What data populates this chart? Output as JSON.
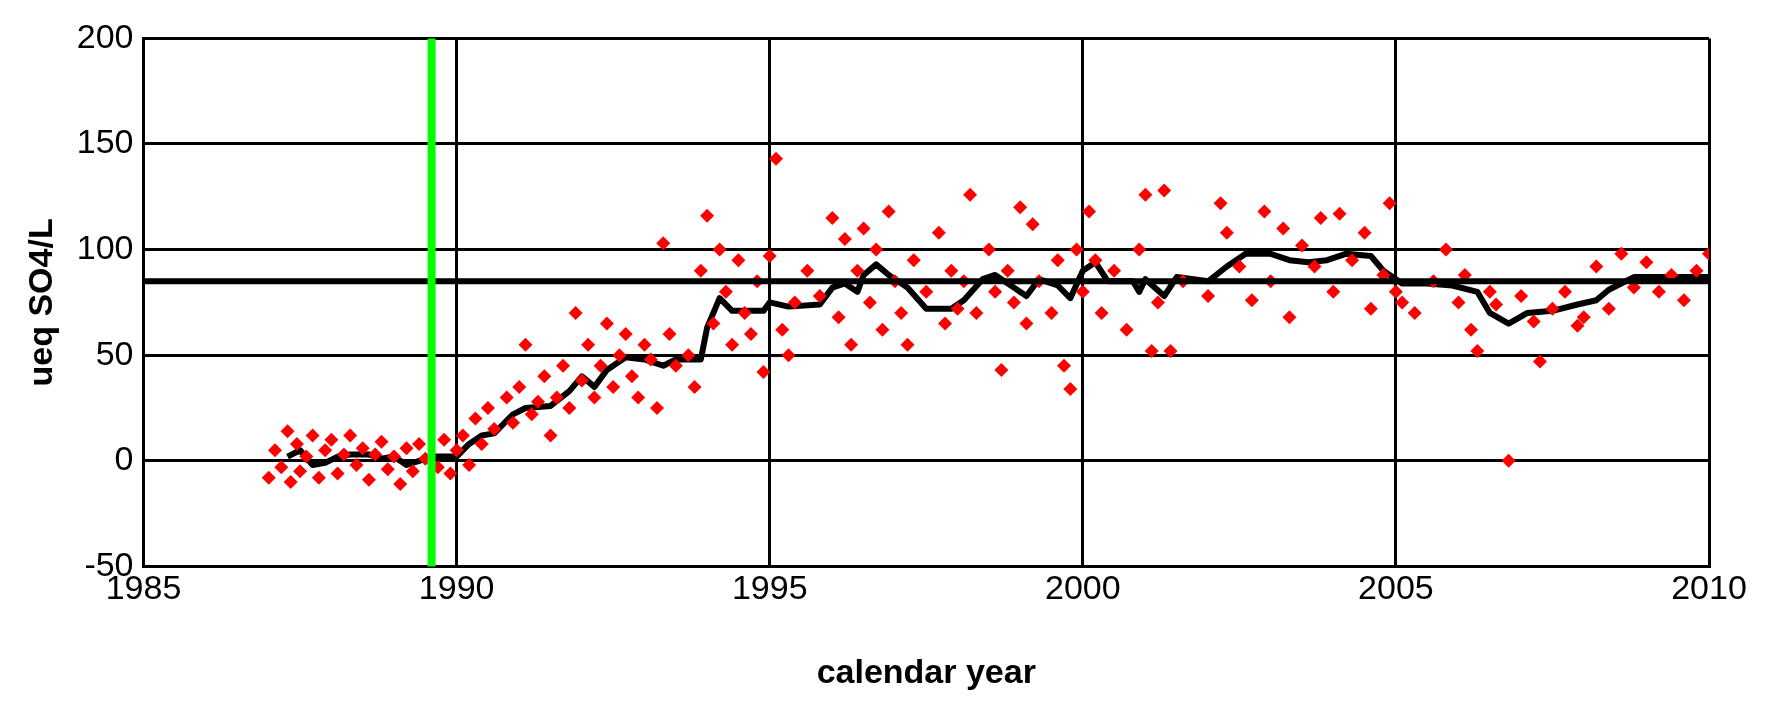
{
  "chart_data": {
    "type": "scatter",
    "xlabel": "calendar year",
    "ylabel": "ueq SO4/L",
    "xlim": [
      1985,
      2010
    ],
    "xticks": [
      1985,
      1990,
      1995,
      2000,
      2005,
      2010
    ],
    "ylim": [
      -50,
      200
    ],
    "yticks": [
      -50,
      0,
      50,
      100,
      150,
      200
    ],
    "grid": true,
    "legend": false,
    "series": [
      {
        "color": "#ff0000",
        "marker": "diamond",
        "x": [
          1987.0,
          1987.1,
          1987.2,
          1987.3,
          1987.35,
          1987.45,
          1987.5,
          1987.6,
          1987.7,
          1987.8,
          1987.9,
          1988.0,
          1988.1,
          1988.2,
          1988.3,
          1988.4,
          1988.5,
          1988.6,
          1988.7,
          1988.8,
          1988.9,
          1989.0,
          1989.1,
          1989.2,
          1989.3,
          1989.4,
          1989.5,
          1989.7,
          1989.8,
          1989.9,
          1990.0,
          1990.1,
          1990.2,
          1990.3,
          1990.4,
          1990.5,
          1990.6,
          1990.8,
          1990.9,
          1991.0,
          1991.1,
          1991.2,
          1991.3,
          1991.4,
          1991.5,
          1991.6,
          1991.7,
          1991.8,
          1991.9,
          1992.0,
          1992.1,
          1992.2,
          1992.3,
          1992.4,
          1992.5,
          1992.6,
          1992.7,
          1992.8,
          1992.9,
          1993.0,
          1993.1,
          1993.2,
          1993.3,
          1993.4,
          1993.5,
          1993.7,
          1993.8,
          1993.9,
          1994.0,
          1994.1,
          1994.2,
          1994.3,
          1994.4,
          1994.5,
          1994.6,
          1994.7,
          1994.8,
          1994.9,
          1995.0,
          1995.1,
          1995.2,
          1995.3,
          1995.4,
          1995.6,
          1995.8,
          1996.0,
          1996.1,
          1996.2,
          1996.3,
          1996.4,
          1996.5,
          1996.6,
          1996.7,
          1996.8,
          1996.9,
          1997.0,
          1997.1,
          1997.2,
          1997.3,
          1997.5,
          1997.7,
          1997.8,
          1997.9,
          1998.0,
          1998.1,
          1998.2,
          1998.3,
          1998.5,
          1998.6,
          1998.7,
          1998.8,
          1998.9,
          1999.0,
          1999.1,
          1999.2,
          1999.3,
          1999.5,
          1999.6,
          1999.7,
          1999.8,
          1999.9,
          2000.0,
          2000.1,
          2000.2,
          2000.3,
          2000.5,
          2000.7,
          2000.9,
          2001.0,
          2001.1,
          2001.2,
          2001.3,
          2001.4,
          2001.6,
          2002.0,
          2002.2,
          2002.3,
          2002.5,
          2002.7,
          2002.9,
          2003.0,
          2003.2,
          2003.3,
          2003.5,
          2003.7,
          2003.8,
          2004.0,
          2004.1,
          2004.3,
          2004.5,
          2004.6,
          2004.8,
          2004.9,
          2005.0,
          2005.1,
          2005.3,
          2005.6,
          2005.8,
          2006.0,
          2006.1,
          2006.2,
          2006.3,
          2006.5,
          2006.6,
          2006.8,
          2007.0,
          2007.2,
          2007.3,
          2007.5,
          2007.7,
          2007.9,
          2008.0,
          2008.2,
          2008.4,
          2008.6,
          2008.8,
          2009.0,
          2009.2,
          2009.4,
          2009.6,
          2009.8,
          2010.0
        ],
        "values": [
          -8,
          5,
          -3,
          14,
          -10,
          8,
          -5,
          2,
          12,
          -8,
          5,
          10,
          -6,
          3,
          12,
          -2,
          6,
          -9,
          3,
          9,
          -4,
          2,
          -11,
          6,
          -5,
          8,
          1,
          -3,
          10,
          -6,
          5,
          12,
          -2,
          20,
          8,
          25,
          15,
          30,
          18,
          35,
          55,
          22,
          28,
          40,
          12,
          30,
          45,
          25,
          70,
          38,
          55,
          30,
          45,
          65,
          35,
          50,
          60,
          40,
          30,
          55,
          48,
          25,
          103,
          60,
          45,
          50,
          35,
          90,
          116,
          65,
          100,
          80,
          55,
          95,
          70,
          60,
          85,
          42,
          97,
          143,
          62,
          50,
          75,
          90,
          78,
          115,
          68,
          105,
          55,
          90,
          110,
          75,
          100,
          62,
          118,
          85,
          70,
          55,
          95,
          80,
          108,
          65,
          90,
          72,
          85,
          126,
          70,
          100,
          80,
          43,
          90,
          75,
          120,
          65,
          112,
          85,
          70,
          95,
          45,
          34,
          100,
          80,
          118,
          95,
          70,
          90,
          62,
          100,
          126,
          52,
          75,
          128,
          52,
          85,
          78,
          122,
          108,
          92,
          76,
          118,
          85,
          110,
          68,
          102,
          92,
          115,
          80,
          117,
          95,
          108,
          72,
          88,
          122,
          80,
          75,
          70,
          85,
          100,
          75,
          88,
          62,
          52,
          80,
          74,
          0,
          78,
          66,
          47,
          72,
          80,
          64,
          68,
          92,
          72,
          98,
          82,
          94,
          80,
          88,
          76,
          90,
          98
        ]
      },
      {
        "type": "line",
        "color": "#000000",
        "marker": "none",
        "line_style": "solid",
        "x": [
          1987.3,
          1987.5,
          1987.7,
          1987.9,
          1988.1,
          1988.3,
          1988.6,
          1988.8,
          1989.0,
          1989.2,
          1989.4,
          1989.6,
          1990.0,
          1990.2,
          1990.4,
          1990.6,
          1990.9,
          1991.1,
          1991.5,
          1991.8,
          1992.0,
          1992.2,
          1992.4,
          1992.7,
          1993.0,
          1993.3,
          1993.5,
          1993.9,
          1994.0,
          1994.2,
          1994.4,
          1994.9,
          1995.0,
          1995.3,
          1995.8,
          1996.0,
          1996.2,
          1996.4,
          1996.5,
          1996.7,
          1996.9,
          1997.2,
          1997.5,
          1997.9,
          1998.1,
          1998.4,
          1998.6,
          1998.9,
          1999.1,
          1999.3,
          1999.6,
          1999.8,
          2000.0,
          2000.2,
          2000.4,
          2000.8,
          2000.9,
          2001.0,
          2001.3,
          2001.5,
          2002.0,
          2002.3,
          2002.6,
          2003.0,
          2003.3,
          2003.6,
          2003.9,
          2004.2,
          2004.6,
          2004.8,
          2005.1,
          2005.5,
          2005.9,
          2006.3,
          2006.5,
          2006.8,
          2007.1,
          2007.5,
          2007.9,
          2008.2,
          2008.4,
          2008.8,
          2009.5,
          2010.0
        ],
        "values": [
          2,
          5,
          -2,
          -1,
          2,
          3,
          3,
          1,
          2,
          -2,
          0,
          2,
          2,
          8,
          12,
          13,
          22,
          25,
          26,
          33,
          40,
          35,
          43,
          49,
          48,
          45,
          48,
          48,
          63,
          77,
          71,
          71,
          75,
          73,
          74,
          82,
          84,
          80,
          88,
          93,
          88,
          82,
          72,
          72,
          76,
          86,
          88,
          82,
          78,
          86,
          83,
          77,
          90,
          94,
          85,
          85,
          80,
          86,
          78,
          87,
          85,
          92,
          98,
          98,
          95,
          94,
          95,
          98,
          97,
          90,
          84,
          84,
          83,
          80,
          70,
          65,
          70,
          71,
          74,
          76,
          81,
          87,
          87,
          87
        ]
      }
    ],
    "ref_lines": [
      {
        "axis": "y",
        "value": 85,
        "color": "#000000"
      },
      {
        "axis": "x",
        "value": 1989.6,
        "color": "#00ff00"
      }
    ]
  }
}
